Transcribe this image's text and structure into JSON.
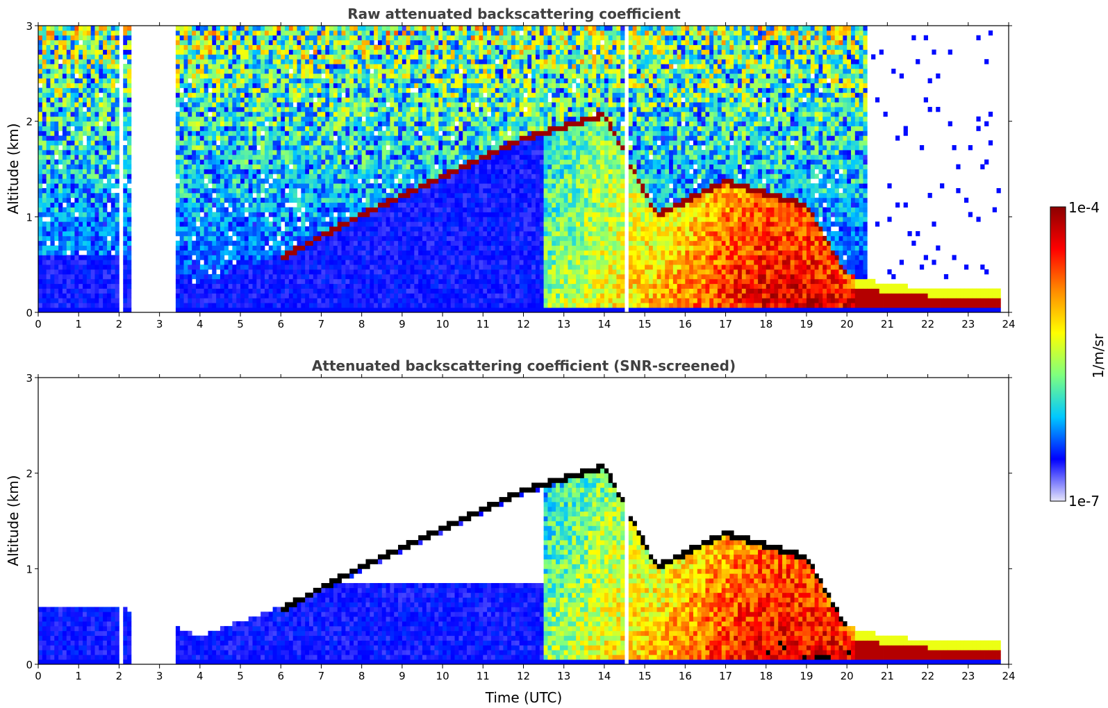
{
  "chart_data": [
    {
      "type": "heatmap",
      "title": "Raw attenuated backscattering coefficient",
      "xlabel": "",
      "ylabel": "Altitude (km)",
      "xlim": [
        0,
        24
      ],
      "ylim": [
        0,
        3
      ],
      "x_ticks": [
        "0",
        "1",
        "2",
        "3",
        "4",
        "5",
        "6",
        "7",
        "8",
        "9",
        "10",
        "11",
        "12",
        "13",
        "14",
        "15",
        "16",
        "17",
        "18",
        "19",
        "20",
        "21",
        "22",
        "23",
        "24"
      ],
      "y_ticks": [
        "0",
        "1",
        "2",
        "3"
      ],
      "screened": false,
      "features": {
        "boundary_layer_top_km": [
          {
            "t": 0,
            "z": 0.6
          },
          {
            "t": 2,
            "z": 0.6
          },
          {
            "t": 4,
            "z": 0.3
          },
          {
            "t": 6,
            "z": 0.6
          },
          {
            "t": 8,
            "z": 1.05
          },
          {
            "t": 10,
            "z": 1.45
          },
          {
            "t": 12,
            "z": 1.85
          },
          {
            "t": 14,
            "z": 2.1
          },
          {
            "t": 15.3,
            "z": 1.05
          },
          {
            "t": 17,
            "z": 1.4
          },
          {
            "t": 19,
            "z": 1.15
          },
          {
            "t": 20,
            "z": 0.4
          },
          {
            "t": 21,
            "z": 0.3
          },
          {
            "t": 22,
            "z": 0.25
          },
          {
            "t": 23.8,
            "z": 0.25
          }
        ],
        "data_gaps_utc": [
          [
            2.05,
            2.1
          ],
          [
            2.3,
            2.35
          ],
          [
            2.45,
            3.4
          ],
          [
            14.5,
            14.6
          ]
        ],
        "data_end_utc": 23.8
      }
    },
    {
      "type": "heatmap",
      "title": "Attenuated backscattering coefficient (SNR-screened)",
      "xlabel": "Time (UTC)",
      "ylabel": "Altitude (km)",
      "xlim": [
        0,
        24
      ],
      "ylim": [
        0,
        3
      ],
      "x_ticks": [
        "0",
        "1",
        "2",
        "3",
        "4",
        "5",
        "6",
        "7",
        "8",
        "9",
        "10",
        "11",
        "12",
        "13",
        "14",
        "15",
        "16",
        "17",
        "18",
        "19",
        "20",
        "21",
        "22",
        "23",
        "24"
      ],
      "y_ticks": [
        "0",
        "1",
        "2",
        "3"
      ],
      "screened": true
    }
  ],
  "colorbar": {
    "label": "1/m/sr",
    "max_label": "1e-4",
    "min_label": "1e-7",
    "scale": "log",
    "range": [
      1e-07,
      0.0001
    ],
    "colormap": [
      "#e6e6fa",
      "#0000ff",
      "#00c8ff",
      "#7fff7f",
      "#ffff00",
      "#ff8c00",
      "#ff0000",
      "#8b0000"
    ]
  }
}
